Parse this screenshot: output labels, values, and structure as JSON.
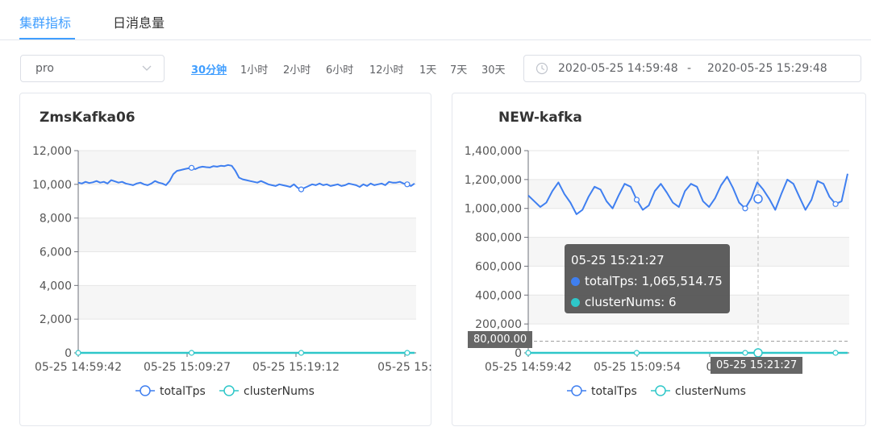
{
  "tabs": [
    {
      "label": "集群指标",
      "active": true
    },
    {
      "label": "日消息量",
      "active": false
    }
  ],
  "toolbar": {
    "env_select_value": "pro",
    "ranges": [
      "30分钟",
      "1小时",
      "2小时",
      "6小时",
      "12小时",
      "1天",
      "7天",
      "30天"
    ],
    "active_range": "30分钟",
    "date_start": "2020-05-25 14:59:48",
    "date_separator": "-",
    "date_end": "2020-05-25 15:29:48"
  },
  "colors": {
    "accent": "#409eff",
    "totalTps": "#3f7ff0",
    "clusterNums": "#2ec7c9"
  },
  "chart_data": [
    {
      "type": "line",
      "title": "ZmsKafka06",
      "y_ticks": [
        "0",
        "2,000",
        "4,000",
        "6,000",
        "8,000",
        "10,000",
        "12,000"
      ],
      "ylim": [
        0,
        12000
      ],
      "x_tick_labels": [
        "05-25 14:59:42",
        "05-25 15:09:27",
        "05-25 15:19:12",
        "05-25 15:"
      ],
      "legend_position": "bottom-center",
      "series": [
        {
          "name": "totalTps",
          "values": [
            10100,
            10050,
            10150,
            10080,
            10120,
            10200,
            10100,
            10150,
            10050,
            10250,
            10180,
            10100,
            10150,
            10050,
            10000,
            9950,
            10050,
            10100,
            10000,
            9950,
            10050,
            10200,
            10100,
            10050,
            9950,
            10200,
            10600,
            10800,
            10850,
            10900,
            10950,
            10980,
            10900,
            11000,
            11050,
            11020,
            11000,
            11080,
            11050,
            11100,
            11080,
            11150,
            11100,
            10800,
            10400,
            10300,
            10250,
            10200,
            10150,
            10100,
            10200,
            10100,
            10000,
            9950,
            9900,
            10000,
            9950,
            9900,
            9850,
            10000,
            9800,
            9700,
            9800,
            9900,
            10000,
            9950,
            10050,
            9950,
            10000,
            9900,
            9950,
            10000,
            9900,
            9950,
            10050,
            10000,
            9950,
            9850,
            10000,
            9900,
            10050,
            9950,
            10000,
            10050,
            9950,
            10150,
            10100,
            10100,
            10150,
            10050,
            10000,
            9900,
            10050
          ]
        },
        {
          "name": "clusterNums",
          "values": [
            0,
            0,
            0,
            0,
            0,
            0,
            0,
            0,
            0,
            0,
            0,
            0,
            0,
            0,
            0,
            0,
            0,
            0,
            0,
            0,
            0,
            0,
            0,
            0,
            0,
            0,
            0,
            0,
            0,
            0,
            0,
            0,
            0,
            0,
            0,
            0,
            0,
            0,
            0,
            0,
            0,
            0,
            0,
            0,
            0,
            0,
            0,
            0,
            0,
            0,
            0,
            0,
            0,
            0,
            0,
            0,
            0,
            0,
            0,
            0,
            0,
            0,
            0,
            0,
            0,
            0,
            0,
            0,
            0,
            0,
            0,
            0,
            0,
            0,
            0,
            0,
            0,
            0,
            0,
            0,
            0,
            0,
            0,
            0,
            0,
            0,
            0,
            0,
            0,
            0,
            0,
            0,
            0
          ]
        }
      ]
    },
    {
      "type": "line",
      "title": "NEW-kafka",
      "y_ticks": [
        "0",
        "200,000",
        "400,000",
        "600,000",
        "800,000",
        "1,000,000",
        "1,200,000",
        "1,400,000"
      ],
      "ylim": [
        0,
        1400000
      ],
      "x_tick_labels": [
        "05-25 14:59:42",
        "05-25 15:09:54",
        "0"
      ],
      "legend_position": "bottom-center",
      "axis_pointer": {
        "y_value": "80,000.00",
        "x_label": "05-25 15:21:27"
      },
      "tooltip": {
        "time": "05-25 15:21:27",
        "totalTps": "totalTps: 1,065,514.75",
        "clusterNums": "clusterNums: 6"
      },
      "series": [
        {
          "name": "totalTps",
          "values": [
            1090000,
            1050000,
            1010000,
            1040000,
            1120000,
            1180000,
            1100000,
            1040000,
            960000,
            990000,
            1080000,
            1150000,
            1130000,
            1050000,
            1000000,
            1090000,
            1170000,
            1150000,
            1060000,
            990000,
            1020000,
            1120000,
            1170000,
            1110000,
            1040000,
            1010000,
            1120000,
            1170000,
            1150000,
            1050000,
            1010000,
            1070000,
            1160000,
            1220000,
            1140000,
            1040000,
            1000000,
            1070000,
            1180000,
            1130000,
            1066000,
            990000,
            1100000,
            1200000,
            1170000,
            1080000,
            990000,
            1060000,
            1190000,
            1170000,
            1080000,
            1030000,
            1050000,
            1240000
          ]
        },
        {
          "name": "clusterNums",
          "values": [
            6,
            6,
            6,
            6,
            6,
            6,
            6,
            6,
            6,
            6,
            6,
            6,
            6,
            6,
            6,
            6,
            6,
            6,
            6,
            6,
            6,
            6,
            6,
            6,
            6,
            6,
            6,
            6,
            6,
            6,
            6,
            6,
            6,
            6,
            6,
            6,
            6,
            6,
            6,
            6,
            6,
            6,
            6,
            6,
            6,
            6,
            6,
            6,
            6,
            6,
            6,
            6,
            6,
            6
          ]
        }
      ]
    }
  ]
}
